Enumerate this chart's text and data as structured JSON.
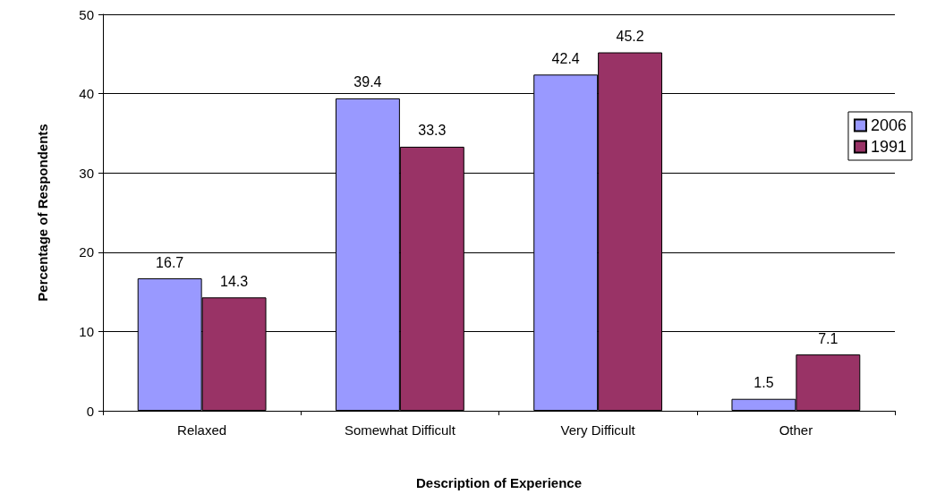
{
  "chart_data": {
    "type": "bar",
    "xlabel": "Description of Experience",
    "ylabel": "Percentage of Respondents",
    "categories": [
      "Relaxed",
      "Somewhat Difficult",
      "Very Difficult",
      "Other"
    ],
    "series": [
      {
        "name": "2006",
        "color": "#9999ff",
        "values": [
          16.7,
          39.4,
          42.4,
          1.5
        ]
      },
      {
        "name": "1991",
        "color": "#993366",
        "values": [
          14.3,
          33.3,
          45.2,
          7.1
        ]
      }
    ],
    "ylim": [
      0,
      50
    ],
    "yticks": [
      0,
      10,
      20,
      30,
      40,
      50
    ],
    "grid": "y",
    "legend": "top right",
    "data_labels": true
  }
}
